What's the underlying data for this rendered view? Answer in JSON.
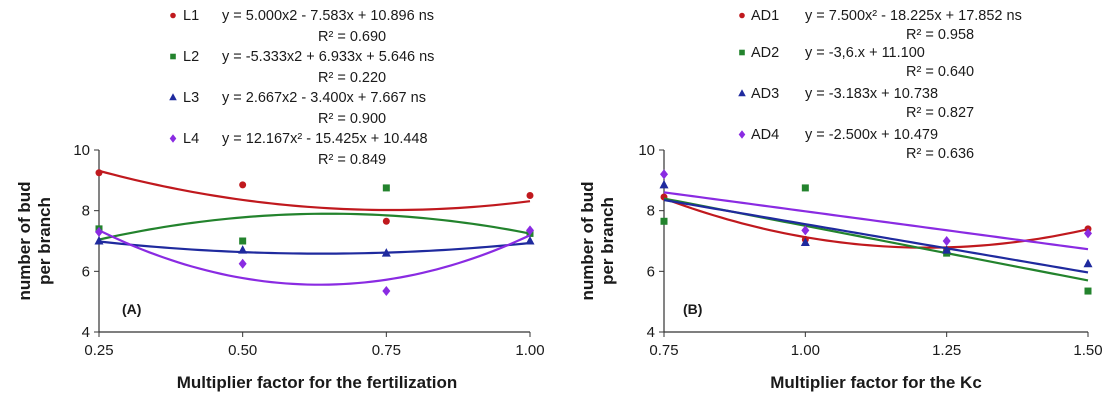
{
  "chart_data": [
    {
      "type": "scatter",
      "panel_label": "(A)",
      "xlabel": "Multiplier factor for the fertilization",
      "ylabel": [
        "number of bud",
        "per branch"
      ],
      "xlim": [
        0.25,
        1.0
      ],
      "ylim": [
        4,
        10
      ],
      "xticks": [
        "0.25",
        "0.50",
        "0.75",
        "1.00"
      ],
      "yticks": [
        "4",
        "6",
        "8",
        "10"
      ],
      "grid": false,
      "legend_position": "top",
      "series": [
        {
          "name": "L1",
          "color": "#c0191e",
          "marker": "circle",
          "x": [
            0.25,
            0.5,
            0.75,
            1.0
          ],
          "y": [
            9.25,
            8.85,
            7.65,
            8.5
          ],
          "fit": "quadratic",
          "coef": [
            5.0,
            -7.583,
            10.896
          ],
          "equation": "y = 5.000x2 - 7.583x + 10.896 ns",
          "r2": "R² = 0.690"
        },
        {
          "name": "L2",
          "color": "#23832d",
          "marker": "square",
          "x": [
            0.25,
            0.5,
            0.75,
            1.0
          ],
          "y": [
            7.4,
            7.0,
            8.75,
            7.25
          ],
          "fit": "quadratic",
          "coef": [
            -5.333,
            6.933,
            5.646
          ],
          "equation": "y = -5.333x2 + 6.933x + 5.646 ns",
          "r2": "R² = 0.220"
        },
        {
          "name": "L3",
          "color": "#1f2a9e",
          "marker": "triangle",
          "x": [
            0.25,
            0.5,
            0.75,
            1.0
          ],
          "y": [
            7.0,
            6.7,
            6.6,
            7.0
          ],
          "fit": "quadratic",
          "coef": [
            2.667,
            -3.4,
            7.667
          ],
          "equation": "y = 2.667x2 - 3.400x + 7.667 ns",
          "r2": "R² = 0.900"
        },
        {
          "name": "L4",
          "color": "#8a2be2",
          "marker": "diamond",
          "x": [
            0.25,
            0.5,
            0.75,
            1.0
          ],
          "y": [
            7.3,
            6.25,
            5.35,
            7.35
          ],
          "fit": "quadratic",
          "coef": [
            12.167,
            -15.425,
            10.448
          ],
          "equation": "y = 12.167x² - 15.425x + 10.448",
          "r2": "R² = 0.849"
        }
      ]
    },
    {
      "type": "scatter",
      "panel_label": "(B)",
      "xlabel": "Multiplier factor for the Kc",
      "ylabel": [
        "number of bud",
        "per branch"
      ],
      "xlim": [
        0.75,
        1.5
      ],
      "ylim": [
        4,
        10
      ],
      "xticks": [
        "0.75",
        "1.00",
        "1.25",
        "1.50"
      ],
      "yticks": [
        "4",
        "6",
        "8",
        "10"
      ],
      "grid": false,
      "legend_position": "top",
      "series": [
        {
          "name": "AD1",
          "color": "#c0191e",
          "marker": "circle",
          "x": [
            0.75,
            1.0,
            1.25,
            1.5
          ],
          "y": [
            8.45,
            7.05,
            6.7,
            7.4
          ],
          "fit": "quadratic",
          "coef": [
            7.5,
            -18.225,
            17.852
          ],
          "equation": "y = 7.500x² - 18.225x + 17.852 ns",
          "r2": "R² = 0.958"
        },
        {
          "name": "AD2",
          "color": "#23832d",
          "marker": "square",
          "x": [
            0.75,
            1.0,
            1.25,
            1.5
          ],
          "y": [
            7.65,
            8.75,
            6.6,
            5.35
          ],
          "fit": "linear",
          "coef": [
            0,
            -3.6,
            11.1
          ],
          "equation": "y = -3,6.x + 11.100",
          "r2": "R² = 0.640"
        },
        {
          "name": "AD3",
          "color": "#1f2a9e",
          "marker": "triangle",
          "x": [
            0.75,
            1.0,
            1.25,
            1.5
          ],
          "y": [
            8.85,
            6.95,
            6.7,
            6.25
          ],
          "fit": "linear",
          "coef": [
            0,
            -3.183,
            10.738
          ],
          "equation": "y = -3.183x + 10.738",
          "r2": "R² = 0.827"
        },
        {
          "name": "AD4",
          "color": "#8a2be2",
          "marker": "diamond",
          "x": [
            0.75,
            1.0,
            1.25,
            1.5
          ],
          "y": [
            9.2,
            7.35,
            7.0,
            7.25
          ],
          "fit": "linear",
          "coef": [
            0,
            -2.5,
            10.479
          ],
          "equation": "y = -2.500x + 10.479",
          "r2": "R² = 0.636"
        }
      ]
    }
  ]
}
